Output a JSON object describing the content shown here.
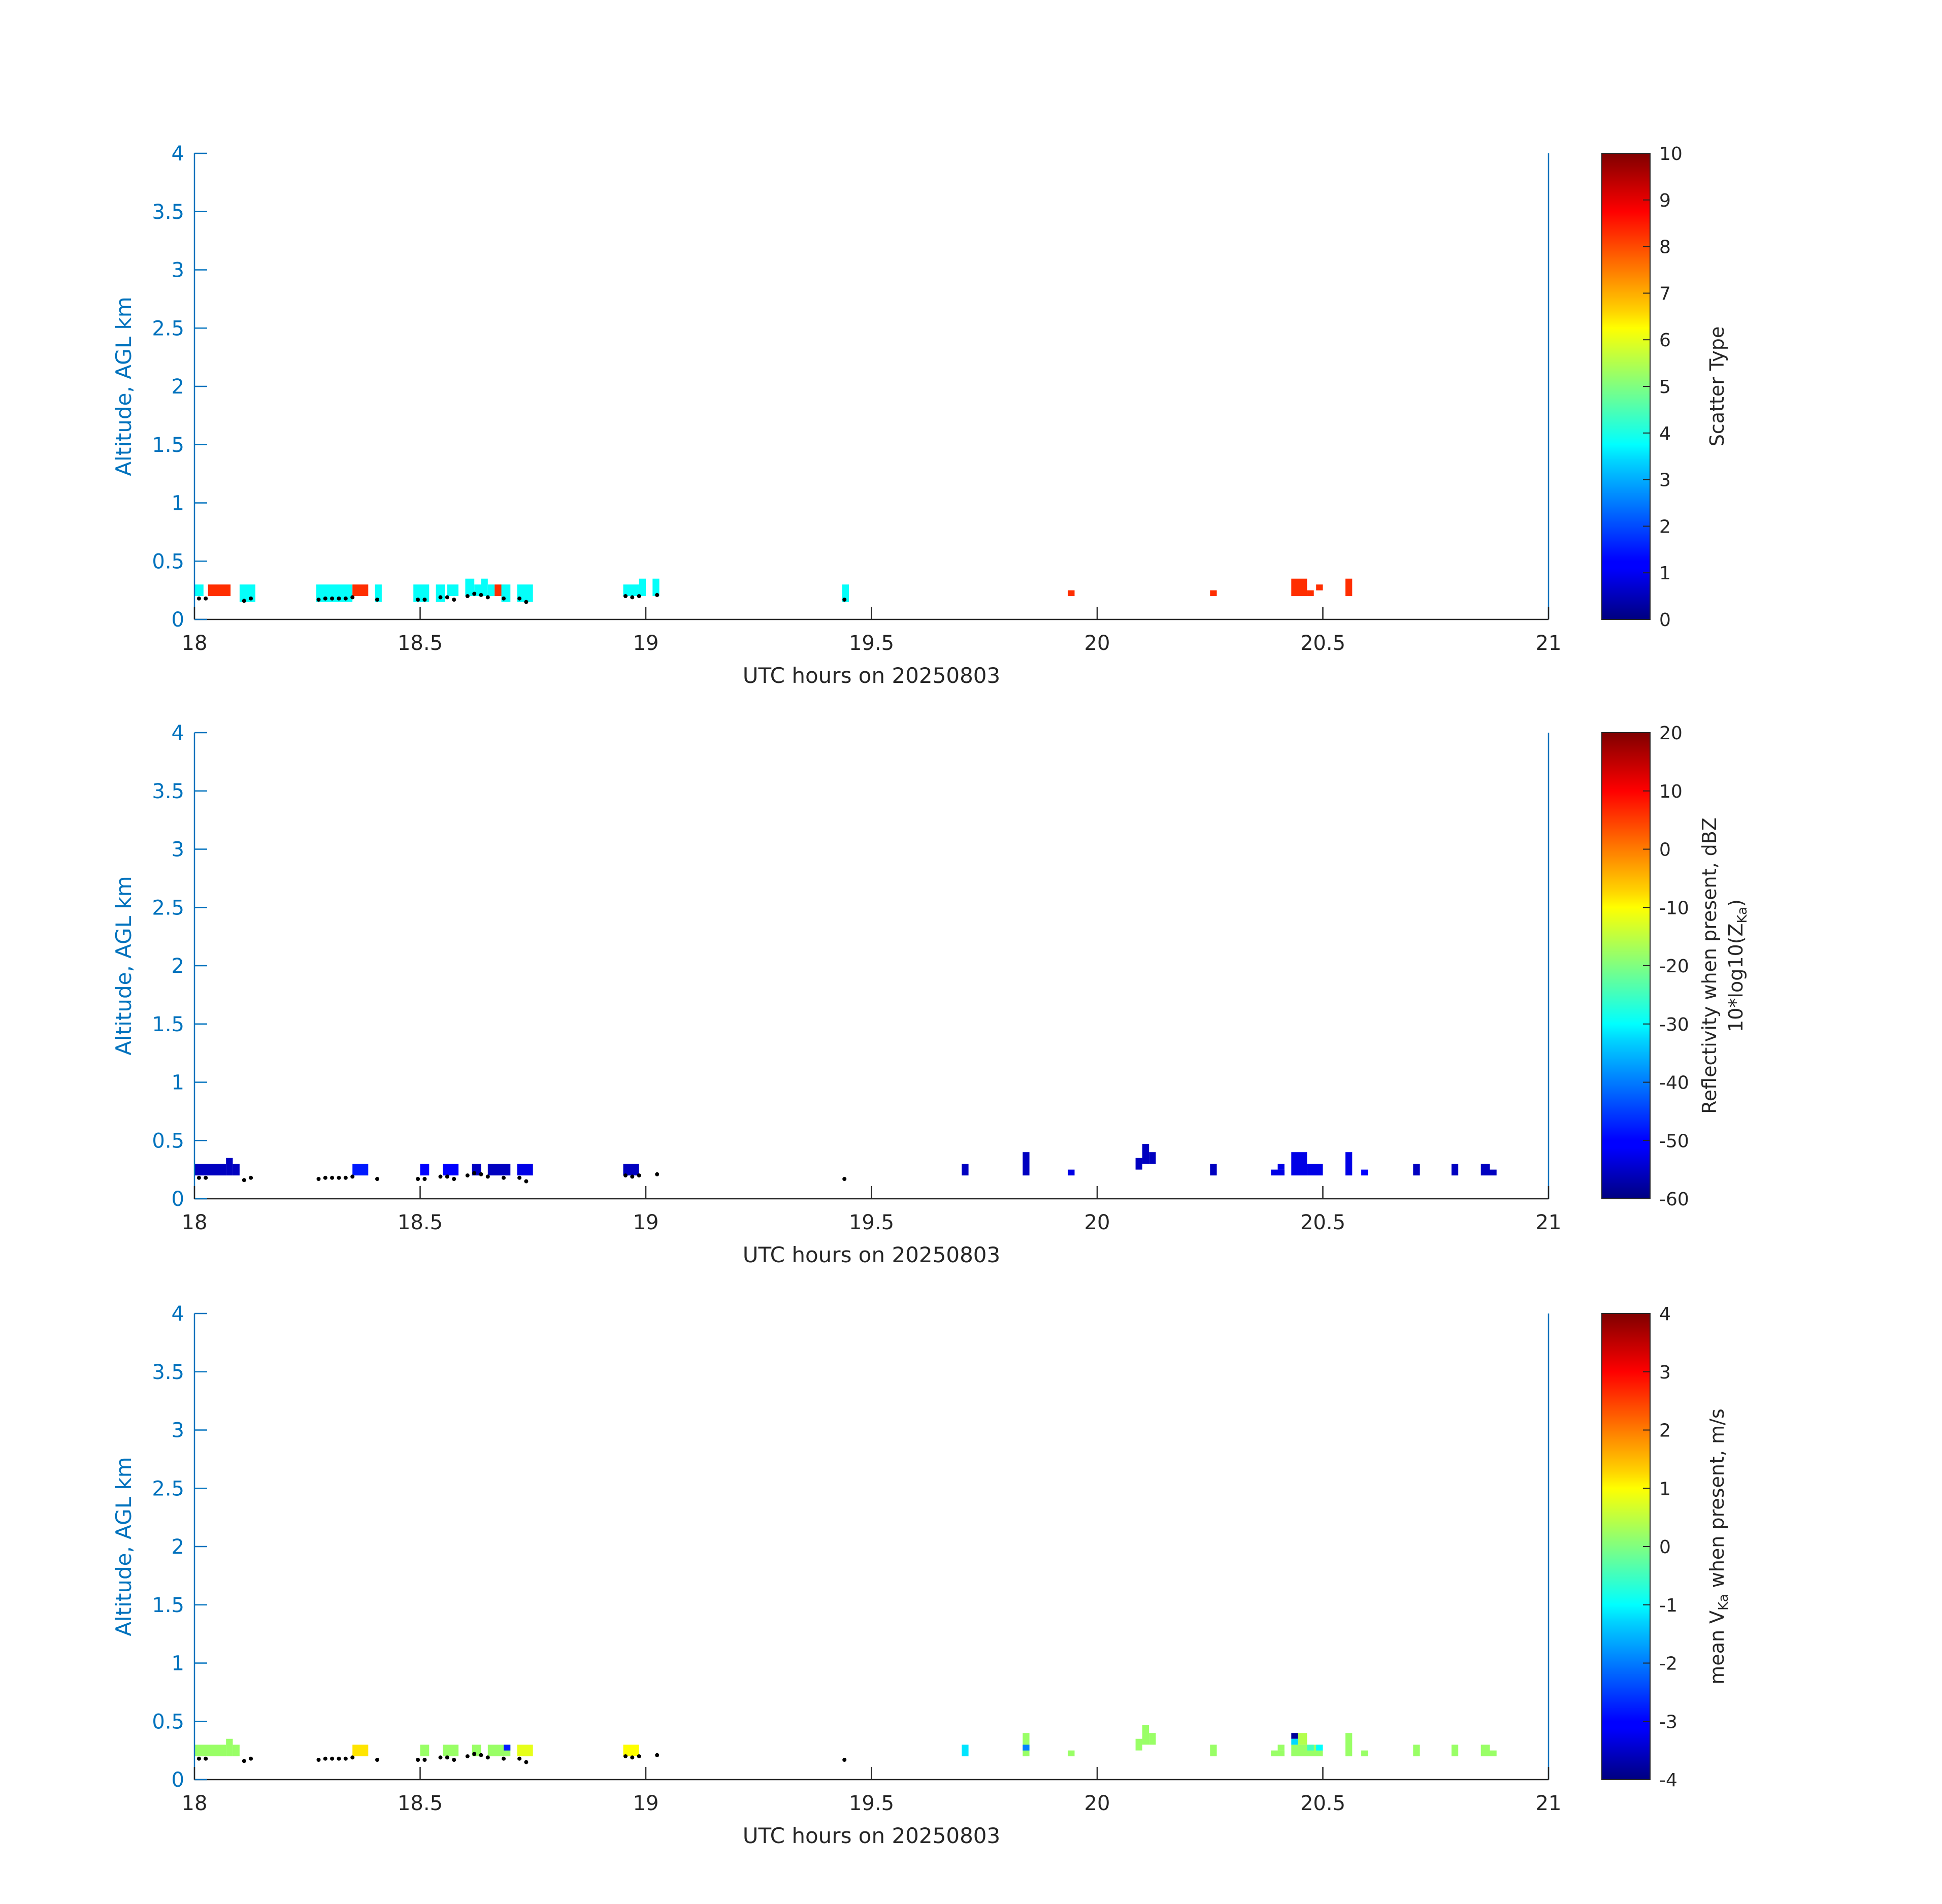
{
  "chart_data": [
    {
      "type": "heatmap",
      "xlabel": "UTC hours on 20250803",
      "ylabel": "Altitude, AGL km",
      "xlim": [
        18,
        21
      ],
      "ylim": [
        0,
        4
      ],
      "xticks": [
        "18",
        "18.5",
        "19",
        "19.5",
        "20",
        "20.5",
        "21"
      ],
      "yticks": [
        "0",
        "0.5",
        "1",
        "1.5",
        "2",
        "2.5",
        "3",
        "3.5",
        "4"
      ],
      "colorbar": {
        "label": "Scatter Type",
        "sub": "",
        "label_suffix": "",
        "label2": "",
        "range": [
          0,
          10
        ],
        "ticks": [
          "0",
          "1",
          "2",
          "3",
          "4",
          "5",
          "6",
          "7",
          "8",
          "9",
          "10"
        ]
      },
      "cells": [
        {
          "t0": 18.0,
          "t1": 18.02,
          "z0": 0.2,
          "z1": 0.3,
          "v": 3.8
        },
        {
          "t0": 18.03,
          "t1": 18.08,
          "z0": 0.2,
          "z1": 0.3,
          "v": 8.3
        },
        {
          "t0": 18.1,
          "t1": 18.135,
          "z0": 0.15,
          "z1": 0.3,
          "v": 3.8
        },
        {
          "t0": 18.27,
          "t1": 18.35,
          "z0": 0.15,
          "z1": 0.3,
          "v": 3.8
        },
        {
          "t0": 18.35,
          "t1": 18.385,
          "z0": 0.2,
          "z1": 0.3,
          "v": 8.3
        },
        {
          "t0": 18.4,
          "t1": 18.415,
          "z0": 0.15,
          "z1": 0.3,
          "v": 3.8
        },
        {
          "t0": 18.485,
          "t1": 18.52,
          "z0": 0.15,
          "z1": 0.3,
          "v": 3.8
        },
        {
          "t0": 18.535,
          "t1": 18.555,
          "z0": 0.15,
          "z1": 0.3,
          "v": 3.8
        },
        {
          "t0": 18.56,
          "t1": 18.585,
          "z0": 0.2,
          "z1": 0.3,
          "v": 3.8
        },
        {
          "t0": 18.6,
          "t1": 18.62,
          "z0": 0.2,
          "z1": 0.35,
          "v": 3.8
        },
        {
          "t0": 18.62,
          "t1": 18.635,
          "z0": 0.2,
          "z1": 0.3,
          "v": 3.8
        },
        {
          "t0": 18.635,
          "t1": 18.65,
          "z0": 0.2,
          "z1": 0.35,
          "v": 3.8
        },
        {
          "t0": 18.65,
          "t1": 18.665,
          "z0": 0.2,
          "z1": 0.3,
          "v": 3.8
        },
        {
          "t0": 18.665,
          "t1": 18.68,
          "z0": 0.2,
          "z1": 0.3,
          "v": 8.3
        },
        {
          "t0": 18.68,
          "t1": 18.7,
          "z0": 0.15,
          "z1": 0.3,
          "v": 3.8
        },
        {
          "t0": 18.715,
          "t1": 18.75,
          "z0": 0.15,
          "z1": 0.3,
          "v": 3.8
        },
        {
          "t0": 18.95,
          "t1": 18.985,
          "z0": 0.2,
          "z1": 0.3,
          "v": 3.8
        },
        {
          "t0": 18.985,
          "t1": 19.0,
          "z0": 0.2,
          "z1": 0.35,
          "v": 3.8
        },
        {
          "t0": 19.015,
          "t1": 19.03,
          "z0": 0.2,
          "z1": 0.35,
          "v": 3.8
        },
        {
          "t0": 19.435,
          "t1": 19.45,
          "z0": 0.15,
          "z1": 0.3,
          "v": 3.8
        },
        {
          "t0": 19.935,
          "t1": 19.95,
          "z0": 0.2,
          "z1": 0.25,
          "v": 8.3
        },
        {
          "t0": 20.25,
          "t1": 20.265,
          "z0": 0.2,
          "z1": 0.25,
          "v": 8.3
        },
        {
          "t0": 20.43,
          "t1": 20.465,
          "z0": 0.2,
          "z1": 0.35,
          "v": 8.3
        },
        {
          "t0": 20.465,
          "t1": 20.48,
          "z0": 0.2,
          "z1": 0.25,
          "v": 8.3
        },
        {
          "t0": 20.485,
          "t1": 20.5,
          "z0": 0.25,
          "z1": 0.3,
          "v": 8.3
        },
        {
          "t0": 20.55,
          "t1": 20.565,
          "z0": 0.2,
          "z1": 0.35,
          "v": 8.3
        }
      ]
    },
    {
      "type": "heatmap",
      "xlabel": "UTC hours on 20250803",
      "ylabel": "Altitude, AGL km",
      "xlim": [
        18,
        21
      ],
      "ylim": [
        0,
        4
      ],
      "xticks": [
        "18",
        "18.5",
        "19",
        "19.5",
        "20",
        "20.5",
        "21"
      ],
      "yticks": [
        "0",
        "0.5",
        "1",
        "1.5",
        "2",
        "2.5",
        "3",
        "3.5",
        "4"
      ],
      "colorbar": {
        "label": "Reflectivity when present, dBZ",
        "label2": "10*log10(Z",
        "sub": "Ka",
        "label_suffix": ")",
        "range": [
          -60,
          20
        ],
        "ticks": [
          "-60",
          "-50",
          "-40",
          "-30",
          "-20",
          "-10",
          "0",
          "10",
          "20"
        ]
      },
      "cells": [
        {
          "t0": 18.0,
          "t1": 18.07,
          "z0": 0.2,
          "z1": 0.3,
          "v": -55
        },
        {
          "t0": 18.07,
          "t1": 18.085,
          "z0": 0.2,
          "z1": 0.35,
          "v": -55
        },
        {
          "t0": 18.085,
          "t1": 18.1,
          "z0": 0.2,
          "z1": 0.3,
          "v": -55
        },
        {
          "t0": 18.35,
          "t1": 18.385,
          "z0": 0.2,
          "z1": 0.3,
          "v": -48
        },
        {
          "t0": 18.5,
          "t1": 18.52,
          "z0": 0.2,
          "z1": 0.3,
          "v": -50
        },
        {
          "t0": 18.55,
          "t1": 18.585,
          "z0": 0.2,
          "z1": 0.3,
          "v": -50
        },
        {
          "t0": 18.615,
          "t1": 18.635,
          "z0": 0.2,
          "z1": 0.3,
          "v": -55
        },
        {
          "t0": 18.65,
          "t1": 18.7,
          "z0": 0.2,
          "z1": 0.3,
          "v": -55
        },
        {
          "t0": 18.715,
          "t1": 18.75,
          "z0": 0.2,
          "z1": 0.3,
          "v": -52
        },
        {
          "t0": 18.95,
          "t1": 18.985,
          "z0": 0.2,
          "z1": 0.3,
          "v": -55
        },
        {
          "t0": 19.7,
          "t1": 19.715,
          "z0": 0.2,
          "z1": 0.3,
          "v": -55
        },
        {
          "t0": 19.835,
          "t1": 19.85,
          "z0": 0.2,
          "z1": 0.4,
          "v": -55
        },
        {
          "t0": 19.935,
          "t1": 19.95,
          "z0": 0.2,
          "z1": 0.25,
          "v": -52
        },
        {
          "t0": 20.085,
          "t1": 20.1,
          "z0": 0.25,
          "z1": 0.35,
          "v": -55
        },
        {
          "t0": 20.1,
          "t1": 20.115,
          "z0": 0.3,
          "z1": 0.47,
          "v": -55
        },
        {
          "t0": 20.115,
          "t1": 20.13,
          "z0": 0.3,
          "z1": 0.4,
          "v": -55
        },
        {
          "t0": 20.25,
          "t1": 20.265,
          "z0": 0.2,
          "z1": 0.3,
          "v": -55
        },
        {
          "t0": 20.385,
          "t1": 20.415,
          "z0": 0.2,
          "z1": 0.25,
          "v": -52
        },
        {
          "t0": 20.4,
          "t1": 20.415,
          "z0": 0.25,
          "z1": 0.3,
          "v": -52
        },
        {
          "t0": 20.43,
          "t1": 20.465,
          "z0": 0.2,
          "z1": 0.4,
          "v": -52
        },
        {
          "t0": 20.465,
          "t1": 20.5,
          "z0": 0.2,
          "z1": 0.3,
          "v": -52
        },
        {
          "t0": 20.55,
          "t1": 20.565,
          "z0": 0.2,
          "z1": 0.4,
          "v": -52
        },
        {
          "t0": 20.585,
          "t1": 20.6,
          "z0": 0.2,
          "z1": 0.25,
          "v": -50
        },
        {
          "t0": 20.7,
          "t1": 20.715,
          "z0": 0.2,
          "z1": 0.3,
          "v": -55
        },
        {
          "t0": 20.785,
          "t1": 20.8,
          "z0": 0.2,
          "z1": 0.3,
          "v": -55
        },
        {
          "t0": 20.85,
          "t1": 20.87,
          "z0": 0.2,
          "z1": 0.3,
          "v": -55
        },
        {
          "t0": 20.87,
          "t1": 20.885,
          "z0": 0.2,
          "z1": 0.25,
          "v": -55
        }
      ]
    },
    {
      "type": "heatmap",
      "xlabel": "UTC hours on 20250803",
      "ylabel": "Altitude, AGL km",
      "xlim": [
        18,
        21
      ],
      "ylim": [
        0,
        4
      ],
      "xticks": [
        "18",
        "18.5",
        "19",
        "19.5",
        "20",
        "20.5",
        "21"
      ],
      "yticks": [
        "0",
        "0.5",
        "1",
        "1.5",
        "2",
        "2.5",
        "3",
        "3.5",
        "4"
      ],
      "colorbar": {
        "label": "mean V",
        "sub": "Ka",
        "label_suffix": " when present, m/s",
        "label2": "",
        "range": [
          -4,
          4
        ],
        "ticks": [
          "-4",
          "-3",
          "-2",
          "-1",
          "0",
          "1",
          "2",
          "3",
          "4"
        ]
      },
      "cells": [
        {
          "t0": 18.0,
          "t1": 18.07,
          "z0": 0.2,
          "z1": 0.3,
          "v": 0.2
        },
        {
          "t0": 18.07,
          "t1": 18.085,
          "z0": 0.2,
          "z1": 0.35,
          "v": 0.2
        },
        {
          "t0": 18.085,
          "t1": 18.1,
          "z0": 0.2,
          "z1": 0.3,
          "v": 0.2
        },
        {
          "t0": 18.35,
          "t1": 18.385,
          "z0": 0.2,
          "z1": 0.3,
          "v": 1.2
        },
        {
          "t0": 18.5,
          "t1": 18.52,
          "z0": 0.2,
          "z1": 0.3,
          "v": 0.2
        },
        {
          "t0": 18.55,
          "t1": 18.585,
          "z0": 0.2,
          "z1": 0.3,
          "v": 0.2
        },
        {
          "t0": 18.615,
          "t1": 18.635,
          "z0": 0.2,
          "z1": 0.3,
          "v": 0.2
        },
        {
          "t0": 18.65,
          "t1": 18.7,
          "z0": 0.2,
          "z1": 0.3,
          "v": 0.2
        },
        {
          "t0": 18.685,
          "t1": 18.7,
          "z0": 0.25,
          "z1": 0.3,
          "v": -2.8
        },
        {
          "t0": 18.715,
          "t1": 18.75,
          "z0": 0.2,
          "z1": 0.3,
          "v": 0.8
        },
        {
          "t0": 18.95,
          "t1": 18.985,
          "z0": 0.2,
          "z1": 0.3,
          "v": 1.0
        },
        {
          "t0": 19.7,
          "t1": 19.715,
          "z0": 0.2,
          "z1": 0.3,
          "v": -1.2
        },
        {
          "t0": 19.835,
          "t1": 19.85,
          "z0": 0.2,
          "z1": 0.4,
          "v": 0.2
        },
        {
          "t0": 19.835,
          "t1": 19.85,
          "z0": 0.25,
          "z1": 0.3,
          "v": -2.0
        },
        {
          "t0": 19.935,
          "t1": 19.95,
          "z0": 0.2,
          "z1": 0.25,
          "v": 0.2
        },
        {
          "t0": 20.085,
          "t1": 20.1,
          "z0": 0.25,
          "z1": 0.35,
          "v": 0.2
        },
        {
          "t0": 20.1,
          "t1": 20.115,
          "z0": 0.3,
          "z1": 0.47,
          "v": 0.2
        },
        {
          "t0": 20.115,
          "t1": 20.13,
          "z0": 0.3,
          "z1": 0.4,
          "v": 0.2
        },
        {
          "t0": 20.25,
          "t1": 20.265,
          "z0": 0.2,
          "z1": 0.3,
          "v": 0.2
        },
        {
          "t0": 20.385,
          "t1": 20.415,
          "z0": 0.2,
          "z1": 0.25,
          "v": 0.2
        },
        {
          "t0": 20.4,
          "t1": 20.415,
          "z0": 0.25,
          "z1": 0.3,
          "v": 0.2
        },
        {
          "t0": 20.43,
          "t1": 20.5,
          "z0": 0.2,
          "z1": 0.3,
          "v": 0.2
        },
        {
          "t0": 20.43,
          "t1": 20.445,
          "z0": 0.35,
          "z1": 0.4,
          "v": -3.8
        },
        {
          "t0": 20.43,
          "t1": 20.445,
          "z0": 0.3,
          "z1": 0.35,
          "v": -1.3
        },
        {
          "t0": 20.445,
          "t1": 20.465,
          "z0": 0.3,
          "z1": 0.4,
          "v": 0.4
        },
        {
          "t0": 20.465,
          "t1": 20.48,
          "z0": 0.25,
          "z1": 0.3,
          "v": -0.5
        },
        {
          "t0": 20.485,
          "t1": 20.5,
          "z0": 0.25,
          "z1": 0.3,
          "v": -1.0
        },
        {
          "t0": 20.55,
          "t1": 20.565,
          "z0": 0.2,
          "z1": 0.4,
          "v": 0.2
        },
        {
          "t0": 20.585,
          "t1": 20.6,
          "z0": 0.2,
          "z1": 0.25,
          "v": 0.2
        },
        {
          "t0": 20.7,
          "t1": 20.715,
          "z0": 0.2,
          "z1": 0.3,
          "v": 0.2
        },
        {
          "t0": 20.785,
          "t1": 20.8,
          "z0": 0.2,
          "z1": 0.3,
          "v": 0.2
        },
        {
          "t0": 20.85,
          "t1": 20.87,
          "z0": 0.2,
          "z1": 0.3,
          "v": 0.2
        },
        {
          "t0": 20.87,
          "t1": 20.885,
          "z0": 0.2,
          "z1": 0.25,
          "v": 0.2
        }
      ]
    }
  ],
  "cloud_base_points": [
    {
      "t": 18.01,
      "z": 0.18
    },
    {
      "t": 18.025,
      "z": 0.18
    },
    {
      "t": 18.11,
      "z": 0.16
    },
    {
      "t": 18.125,
      "z": 0.18
    },
    {
      "t": 18.275,
      "z": 0.17
    },
    {
      "t": 18.29,
      "z": 0.18
    },
    {
      "t": 18.305,
      "z": 0.18
    },
    {
      "t": 18.32,
      "z": 0.18
    },
    {
      "t": 18.335,
      "z": 0.18
    },
    {
      "t": 18.35,
      "z": 0.19
    },
    {
      "t": 18.405,
      "z": 0.17
    },
    {
      "t": 18.495,
      "z": 0.17
    },
    {
      "t": 18.51,
      "z": 0.17
    },
    {
      "t": 18.545,
      "z": 0.19
    },
    {
      "t": 18.56,
      "z": 0.19
    },
    {
      "t": 18.575,
      "z": 0.17
    },
    {
      "t": 18.605,
      "z": 0.2
    },
    {
      "t": 18.62,
      "z": 0.22
    },
    {
      "t": 18.635,
      "z": 0.21
    },
    {
      "t": 18.65,
      "z": 0.19
    },
    {
      "t": 18.685,
      "z": 0.18
    },
    {
      "t": 18.72,
      "z": 0.18
    },
    {
      "t": 18.735,
      "z": 0.15
    },
    {
      "t": 18.955,
      "z": 0.2
    },
    {
      "t": 18.97,
      "z": 0.19
    },
    {
      "t": 18.985,
      "z": 0.2
    },
    {
      "t": 19.025,
      "z": 0.21
    },
    {
      "t": 19.44,
      "z": 0.17
    }
  ]
}
